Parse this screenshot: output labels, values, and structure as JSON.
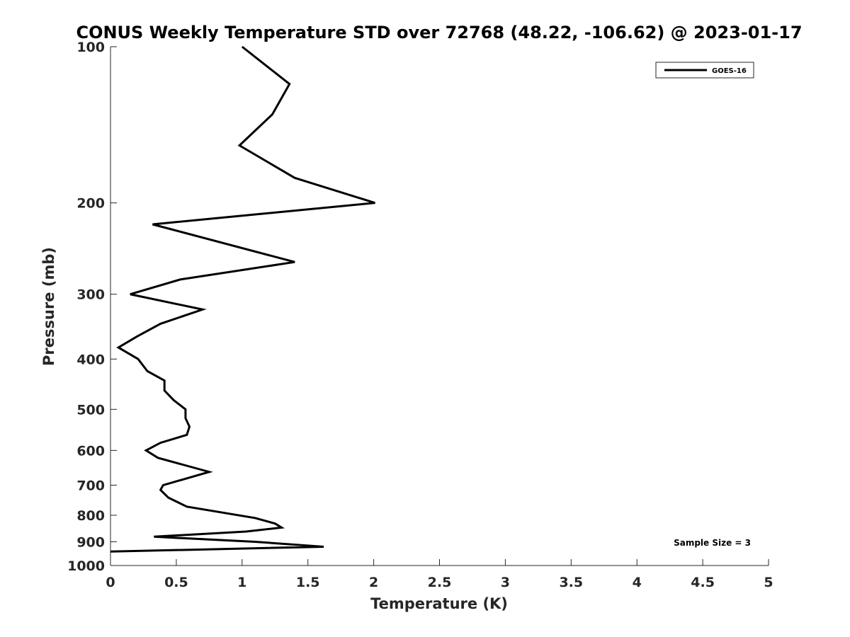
{
  "chart_data": {
    "type": "line",
    "title": "CONUS Weekly Temperature STD over 72768 (48.22, -106.62) @ 2023-01-17",
    "xlabel": "Temperature (K)",
    "ylabel": "Pressure (mb)",
    "xlim": [
      0,
      5
    ],
    "ylim": [
      100,
      1000
    ],
    "yscale": "log",
    "y_reversed": true,
    "grid": false,
    "x_ticks": [
      0,
      0.5,
      1,
      1.5,
      2,
      2.5,
      3,
      3.5,
      4,
      4.5,
      5
    ],
    "x_tick_labels": [
      "0",
      "0.5",
      "1",
      "1.5",
      "2",
      "2.5",
      "3",
      "3.5",
      "4",
      "4.5",
      "5"
    ],
    "y_ticks": [
      100,
      200,
      300,
      400,
      500,
      600,
      700,
      800,
      900,
      1000
    ],
    "y_tick_labels": [
      "100",
      "200",
      "300",
      "400",
      "500",
      "600",
      "700",
      "800",
      "900",
      "1000"
    ],
    "legend_placement": "top-right",
    "annotation": "Sample Size = 3",
    "series": [
      {
        "name": "GOES-16",
        "color": "#000000",
        "points": [
          {
            "x": 1.0,
            "y": 100
          },
          {
            "x": 1.36,
            "y": 118
          },
          {
            "x": 1.23,
            "y": 135
          },
          {
            "x": 0.98,
            "y": 155
          },
          {
            "x": 1.4,
            "y": 179
          },
          {
            "x": 2.01,
            "y": 200
          },
          {
            "x": 0.32,
            "y": 220
          },
          {
            "x": 1.4,
            "y": 260
          },
          {
            "x": 0.53,
            "y": 281
          },
          {
            "x": 0.15,
            "y": 300
          },
          {
            "x": 0.7,
            "y": 321
          },
          {
            "x": 0.38,
            "y": 342
          },
          {
            "x": 0.2,
            "y": 362
          },
          {
            "x": 0.06,
            "y": 380
          },
          {
            "x": 0.21,
            "y": 400
          },
          {
            "x": 0.28,
            "y": 422
          },
          {
            "x": 0.41,
            "y": 440
          },
          {
            "x": 0.41,
            "y": 460
          },
          {
            "x": 0.48,
            "y": 480
          },
          {
            "x": 0.57,
            "y": 500
          },
          {
            "x": 0.57,
            "y": 520
          },
          {
            "x": 0.6,
            "y": 540
          },
          {
            "x": 0.58,
            "y": 560
          },
          {
            "x": 0.38,
            "y": 580
          },
          {
            "x": 0.27,
            "y": 600
          },
          {
            "x": 0.36,
            "y": 620
          },
          {
            "x": 0.75,
            "y": 660
          },
          {
            "x": 0.4,
            "y": 700
          },
          {
            "x": 0.38,
            "y": 715
          },
          {
            "x": 0.44,
            "y": 740
          },
          {
            "x": 0.58,
            "y": 770
          },
          {
            "x": 1.1,
            "y": 810
          },
          {
            "x": 1.25,
            "y": 830
          },
          {
            "x": 1.3,
            "y": 845
          },
          {
            "x": 1.03,
            "y": 860
          },
          {
            "x": 0.33,
            "y": 880
          },
          {
            "x": 1.1,
            "y": 900
          },
          {
            "x": 1.62,
            "y": 920
          },
          {
            "x": 0.0,
            "y": 940
          }
        ]
      }
    ]
  }
}
